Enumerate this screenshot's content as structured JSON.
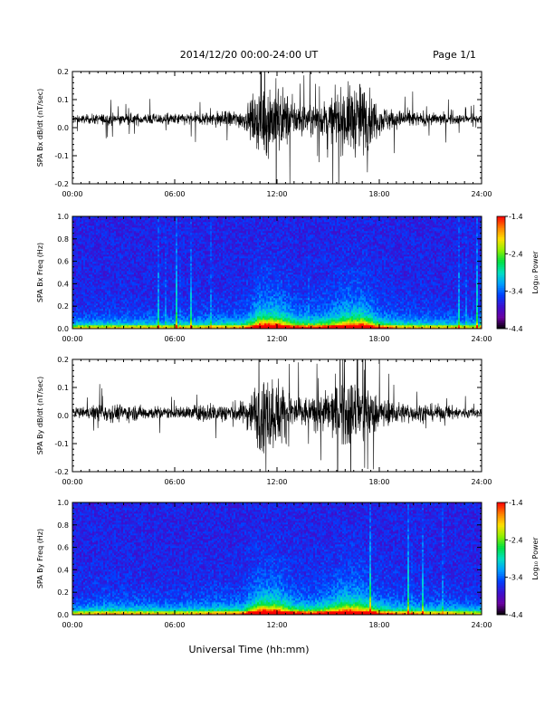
{
  "header": {
    "title": "2014/12/20  00:00-24:00 UT",
    "page": "Page 1/1"
  },
  "xlabel": "Universal Time (hh:mm)",
  "chart_data": [
    {
      "type": "line",
      "ylabel": "SPA Bx dB/dt (nT/sec)",
      "xlim": [
        "00:00",
        "24:00"
      ],
      "ylim": [
        -0.2,
        0.2
      ],
      "xticks": [
        "00:00",
        "06:00",
        "12:00",
        "18:00",
        "24:00"
      ],
      "yticks": [
        "-0.2",
        "-0.1",
        "0.0",
        "0.1",
        "0.2"
      ],
      "baseline": 0.03,
      "envelope": {
        "hours": [
          0,
          2,
          4,
          6,
          8,
          10,
          10.5,
          11,
          12,
          13,
          14,
          15,
          16,
          17,
          18,
          19,
          20,
          22,
          24
        ],
        "amplitude": [
          0.02,
          0.03,
          0.03,
          0.03,
          0.04,
          0.05,
          0.1,
          0.2,
          0.2,
          0.1,
          0.08,
          0.1,
          0.18,
          0.2,
          0.08,
          0.05,
          0.04,
          0.03,
          0.02
        ]
      },
      "color": "#000000"
    },
    {
      "type": "heatmap",
      "ylabel": "SPA Bx Freq (Hz)",
      "xlim": [
        "00:00",
        "24:00"
      ],
      "ylim": [
        0.0,
        1.0
      ],
      "xticks": [
        "00:00",
        "06:00",
        "12:00",
        "18:00",
        "24:00"
      ],
      "yticks": [
        "0.0",
        "0.2",
        "0.4",
        "0.6",
        "0.8",
        "1.0"
      ],
      "colorbar": {
        "label": "Log₁₀ Power",
        "ticks": [
          "-1.4",
          "-2.4",
          "-3.4",
          "-4.4"
        ],
        "range": [
          -4.4,
          -1.4
        ]
      },
      "colormap": [
        "#000000",
        "#6a00a0",
        "#3a10d0",
        "#0040ff",
        "#00a0ff",
        "#00e0c0",
        "#00e040",
        "#90f000",
        "#ffe000",
        "#ff8000",
        "#ff0000"
      ]
    },
    {
      "type": "line",
      "ylabel": "SPA By dB/dt (nT/sec)",
      "xlim": [
        "00:00",
        "24:00"
      ],
      "ylim": [
        -0.2,
        0.2
      ],
      "xticks": [
        "00:00",
        "06:00",
        "12:00",
        "18:00",
        "24:00"
      ],
      "yticks": [
        "-0.2",
        "-0.1",
        "0.0",
        "0.1",
        "0.2"
      ],
      "baseline": 0.01,
      "envelope": {
        "hours": [
          0,
          2,
          4,
          6,
          8,
          10,
          10.5,
          11,
          12,
          13,
          14,
          15,
          16,
          17,
          18,
          19,
          20,
          22,
          24
        ],
        "amplitude": [
          0.02,
          0.05,
          0.04,
          0.03,
          0.05,
          0.06,
          0.12,
          0.2,
          0.2,
          0.1,
          0.08,
          0.12,
          0.2,
          0.18,
          0.08,
          0.06,
          0.05,
          0.04,
          0.02
        ]
      },
      "color": "#000000"
    },
    {
      "type": "heatmap",
      "ylabel": "SPA By Freq (Hz)",
      "xlim": [
        "00:00",
        "24:00"
      ],
      "ylim": [
        0.0,
        1.0
      ],
      "xticks": [
        "00:00",
        "06:00",
        "12:00",
        "18:00",
        "24:00"
      ],
      "yticks": [
        "0.0",
        "0.2",
        "0.4",
        "0.6",
        "0.8",
        "1.0"
      ],
      "colorbar": {
        "label": "Log₁₀ Power",
        "ticks": [
          "-1.4",
          "-2.4",
          "-3.4",
          "-4.4"
        ],
        "range": [
          -4.4,
          -1.4
        ]
      },
      "colormap": [
        "#000000",
        "#6a00a0",
        "#3a10d0",
        "#0040ff",
        "#00a0ff",
        "#00e0c0",
        "#00e040",
        "#90f000",
        "#ffe000",
        "#ff8000",
        "#ff0000"
      ]
    }
  ]
}
